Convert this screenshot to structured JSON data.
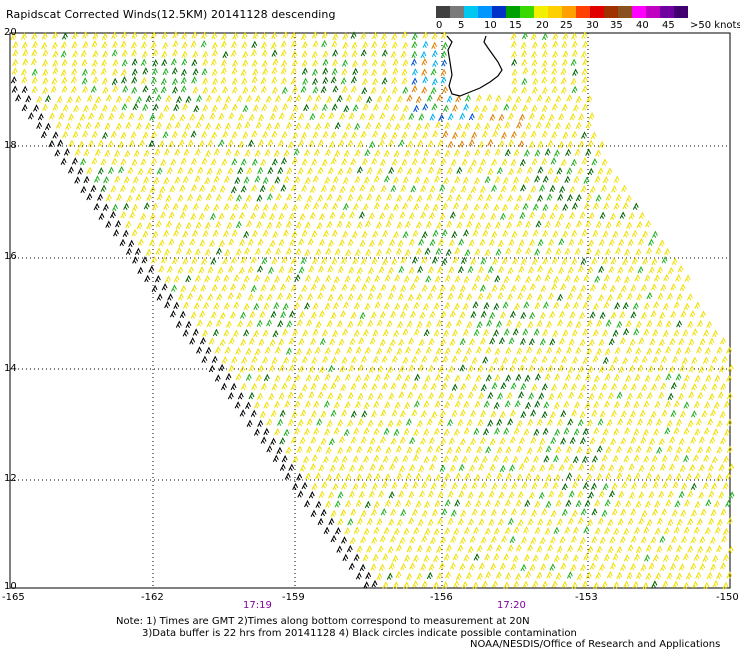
{
  "title": "Rapidscat Corrected Winds(12.5KM) 20141128 descending",
  "colorbar": {
    "colors": [
      "#404040",
      "#7a7a7a",
      "#00c8f0",
      "#0096ff",
      "#0032c8",
      "#00a000",
      "#38d800",
      "#f0f000",
      "#ffd000",
      "#ffa000",
      "#ff4000",
      "#e00000",
      "#a03000",
      "#8a5020",
      "#ff00ff",
      "#c000c0",
      "#7000a0",
      "#400070"
    ],
    "labels": [
      "0",
      "5",
      "10",
      "15",
      "20",
      "25",
      "30",
      "35",
      "40",
      "45",
      ">50 knots"
    ]
  },
  "axes": {
    "lat_labels": [
      "20",
      "18",
      "16",
      "14",
      "12",
      "10"
    ],
    "lon_labels": [
      "-165",
      "-162",
      "-159",
      "-156",
      "-153",
      "-150"
    ]
  },
  "times": [
    "17:19",
    "17:20"
  ],
  "notes": [
    "Note: 1) Times are GMT 2)Times along bottom correspond to measurement at 20N",
    "3)Data buffer is 22 hrs from 20141128 4) Black circles indicate possible contamination",
    "NOAA/NESDIS/Office of Research and Applications"
  ],
  "map": {
    "lon_range": [
      -165,
      -150
    ],
    "lat_range": [
      10,
      20
    ],
    "wind_colors": {
      "black": "#000000",
      "yellow": "#f0e000",
      "light_green": "#20b020",
      "dark_green": "#006400",
      "blue": "#0050d0",
      "cyan": "#00b0f0",
      "orange": "#e08000",
      "red": "#e03020"
    },
    "land_labels": [],
    "coastline": "Hawaii (Big Island) outline near 19-20N, 155-156W"
  }
}
